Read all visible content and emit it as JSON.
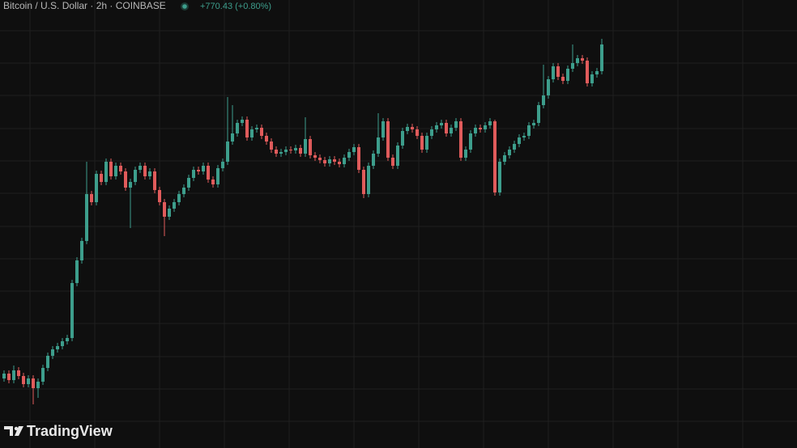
{
  "chart_data": {
    "type": "candlestick",
    "title": "Bitcoin / U.S. Dollar · 2h · COINBASE",
    "change_label": "+770.43 (+0.80%)",
    "watermark": "TradingView",
    "up_color": "#3d9e8c",
    "down_color": "#e05b5b",
    "ylim": [
      92460,
      98000
    ],
    "open": [
      93320,
      93380,
      93300,
      93420,
      93350,
      93250,
      93320,
      93200,
      93280,
      93450,
      93600,
      93680,
      93720,
      93780,
      93820,
      94500,
      94780,
      95020,
      95600,
      95500,
      95850,
      95750,
      96000,
      95820,
      95950,
      95880,
      95680,
      95750,
      95900,
      95950,
      95820,
      95880,
      95650,
      95500,
      95320,
      95420,
      95500,
      95600,
      95680,
      95800,
      95900,
      95880,
      95950,
      95780,
      95720,
      95920,
      96000,
      96250,
      96350,
      96480,
      96520,
      96300,
      96400,
      96420,
      96320,
      96250,
      96150,
      96100,
      96120,
      96150,
      96140,
      96170,
      96100,
      96280,
      96080,
      96050,
      96020,
      95980,
      96030,
      96000,
      95970,
      96050,
      96120,
      96180,
      95900,
      95600,
      95950,
      96100,
      96300,
      96500,
      96050,
      95950,
      96200,
      96380,
      96430,
      96400,
      96320,
      96150,
      96320,
      96400,
      96450,
      96480,
      96350,
      96420,
      96500,
      96050,
      96150,
      96350,
      96420,
      96400,
      96450,
      96500,
      95620,
      96000,
      96080,
      96150,
      96220,
      96300,
      96320,
      96450,
      96480,
      96700,
      96820,
      97020,
      97180,
      97050,
      97000,
      97150,
      97220,
      97280,
      97250,
      96970,
      97080,
      97120
    ],
    "high": [
      93420,
      93420,
      93480,
      93460,
      93390,
      93360,
      93360,
      93320,
      93490,
      93640,
      93720,
      93760,
      93820,
      93860,
      94540,
      94820,
      95060,
      96000,
      95640,
      95890,
      95890,
      96040,
      96040,
      95990,
      95990,
      95920,
      95790,
      95940,
      95990,
      95990,
      95920,
      95920,
      95690,
      95540,
      95460,
      95540,
      95640,
      95720,
      95840,
      95940,
      95940,
      95990,
      95990,
      95820,
      95960,
      96040,
      96800,
      96700,
      96520,
      96560,
      96560,
      96440,
      96460,
      96460,
      96360,
      96290,
      96190,
      96160,
      96190,
      96190,
      96210,
      96210,
      96550,
      96320,
      96120,
      96090,
      96060,
      96070,
      96070,
      96040,
      96090,
      96160,
      96220,
      96220,
      95940,
      95990,
      96140,
      96600,
      96540,
      96540,
      96090,
      96240,
      96420,
      96470,
      96470,
      96440,
      96360,
      96360,
      96440,
      96490,
      96520,
      96520,
      96460,
      96540,
      96540,
      96190,
      96390,
      96460,
      96460,
      96490,
      96540,
      96520,
      96040,
      96120,
      96190,
      96260,
      96340,
      96360,
      96490,
      96520,
      96740,
      97200,
      97060,
      97220,
      97220,
      97090,
      97190,
      97450,
      97320,
      97320,
      97290,
      97120,
      97160,
      97520
    ],
    "low": [
      93280,
      93260,
      93260,
      93310,
      93210,
      93210,
      93000,
      93080,
      93240,
      93410,
      93560,
      93640,
      93680,
      93740,
      93780,
      94460,
      94740,
      94980,
      95460,
      95460,
      95710,
      95710,
      95780,
      95780,
      95840,
      95640,
      95180,
      95710,
      95860,
      95780,
      95780,
      95610,
      95460,
      95080,
      95280,
      95380,
      95460,
      95560,
      95640,
      95760,
      95840,
      95840,
      95740,
      95680,
      95680,
      95880,
      95960,
      96210,
      96310,
      96440,
      96260,
      96260,
      96360,
      96280,
      96210,
      96110,
      96060,
      96060,
      96080,
      96100,
      96100,
      96060,
      96060,
      96040,
      96010,
      95980,
      95940,
      95940,
      95960,
      95930,
      95930,
      96010,
      96080,
      95860,
      95550,
      95560,
      95910,
      96060,
      96260,
      96010,
      95910,
      95910,
      96160,
      96340,
      96360,
      96280,
      96110,
      96110,
      96280,
      96360,
      96410,
      96310,
      96310,
      96380,
      96010,
      96010,
      96110,
      96310,
      96360,
      96360,
      96410,
      95580,
      95580,
      95960,
      96040,
      96110,
      96180,
      96260,
      96280,
      96410,
      96440,
      96660,
      96780,
      96980,
      97010,
      96960,
      96960,
      97110,
      97180,
      97210,
      96930,
      96930,
      97040,
      97080
    ],
    "close": [
      93380,
      93300,
      93420,
      93350,
      93250,
      93320,
      93200,
      93280,
      93450,
      93600,
      93680,
      93720,
      93780,
      93820,
      94500,
      94780,
      95020,
      95600,
      95500,
      95850,
      95750,
      96000,
      95820,
      95950,
      95880,
      95680,
      95750,
      95900,
      95950,
      95820,
      95880,
      95650,
      95500,
      95320,
      95420,
      95500,
      95600,
      95680,
      95800,
      95900,
      95880,
      95950,
      95780,
      95720,
      95920,
      96000,
      96250,
      96350,
      96480,
      96520,
      96300,
      96400,
      96420,
      96320,
      96250,
      96150,
      96100,
      96120,
      96150,
      96140,
      96170,
      96100,
      96280,
      96080,
      96050,
      96020,
      95980,
      96030,
      96000,
      95970,
      96050,
      96120,
      96180,
      95900,
      95600,
      95950,
      96100,
      96300,
      96500,
      96050,
      95950,
      96200,
      96380,
      96430,
      96400,
      96320,
      96150,
      96320,
      96400,
      96450,
      96480,
      96350,
      96420,
      96500,
      96050,
      96150,
      96350,
      96420,
      96400,
      96450,
      96500,
      95620,
      96000,
      96080,
      96150,
      96220,
      96300,
      96320,
      96450,
      96480,
      96700,
      96820,
      97020,
      97180,
      97050,
      97000,
      97150,
      97220,
      97280,
      97250,
      96970,
      97080,
      97120,
      97450
    ]
  }
}
